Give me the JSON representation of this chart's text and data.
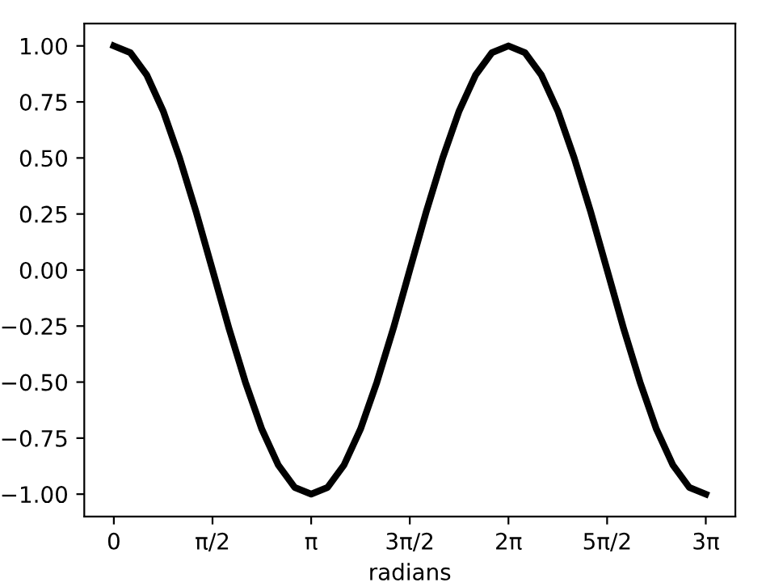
{
  "chart_data": {
    "type": "line",
    "xlabel": "radians",
    "x": [
      0,
      0.262,
      0.524,
      0.785,
      1.047,
      1.309,
      1.571,
      1.833,
      2.094,
      2.356,
      2.618,
      2.88,
      3.142,
      3.403,
      3.665,
      3.927,
      4.189,
      4.451,
      4.712,
      4.974,
      5.236,
      5.498,
      5.76,
      6.021,
      6.283,
      6.545,
      6.807,
      7.069,
      7.33,
      7.592,
      7.854,
      8.116,
      8.378,
      8.639,
      8.901,
      9.163,
      9.425
    ],
    "series": [
      {
        "color": "#000000",
        "values": [
          1,
          0.97,
          0.87,
          0.71,
          0.5,
          0.26,
          0,
          -0.26,
          -0.5,
          -0.71,
          -0.87,
          -0.97,
          -1,
          -0.97,
          -0.87,
          -0.71,
          -0.5,
          -0.26,
          0,
          0.26,
          0.5,
          0.71,
          0.87,
          0.97,
          1,
          0.97,
          0.87,
          0.71,
          0.5,
          0.26,
          0,
          -0.26,
          -0.5,
          -0.71,
          -0.87,
          -0.97,
          -1
        ]
      }
    ],
    "xlim": [
      -0.471,
      9.896
    ],
    "ylim": [
      -1.1,
      1.1
    ],
    "xticks": [
      {
        "value": 0,
        "label": "0"
      },
      {
        "value": 1.571,
        "label": "π/2"
      },
      {
        "value": 3.142,
        "label": "π"
      },
      {
        "value": 4.712,
        "label": "3π/2"
      },
      {
        "value": 6.283,
        "label": "2π"
      },
      {
        "value": 7.854,
        "label": "5π/2"
      },
      {
        "value": 9.425,
        "label": "3π"
      }
    ],
    "yticks": [
      {
        "value": -1,
        "label": "−1.00"
      },
      {
        "value": -0.75,
        "label": "−0.75"
      },
      {
        "value": -0.5,
        "label": "−0.50"
      },
      {
        "value": -0.25,
        "label": "−0.25"
      },
      {
        "value": 0,
        "label": "0.00"
      },
      {
        "value": 0.25,
        "label": "0.25"
      },
      {
        "value": 0.5,
        "label": "0.50"
      },
      {
        "value": 0.75,
        "label": "0.75"
      },
      {
        "value": 1,
        "label": "1.00"
      }
    ],
    "grid": false,
    "legend": false,
    "marker": "none",
    "line_style": "solid"
  }
}
